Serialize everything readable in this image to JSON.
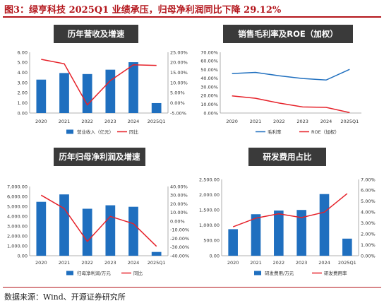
{
  "figure": {
    "title": "图3：绿亨科技 2025Q1 业绩承压，归母净利润同比下降 29.12%",
    "source": "数据来源：Wind、开源证券研究所"
  },
  "colors": {
    "accent": "#b4161c",
    "bar": "#1f6fbf",
    "line": "#e6222a",
    "banner": "#3a3a3a",
    "axis": "#999999"
  },
  "chart_data": [
    {
      "id": "revenue",
      "type": "bar+line",
      "title": "历年营收及增速",
      "categories": [
        "2020",
        "2021",
        "2022",
        "2023",
        "2024",
        "2025Q1"
      ],
      "series": [
        {
          "name": "营业收入（亿元）",
          "kind": "bar",
          "axis": "left",
          "values": [
            3.3,
            3.95,
            3.85,
            4.28,
            5.02,
            0.98
          ]
        },
        {
          "name": "同比",
          "kind": "line",
          "axis": "right",
          "values": [
            21.5,
            19.3,
            -1.0,
            11.0,
            18.8,
            18.5
          ]
        }
      ],
      "left_axis": {
        "min": 0,
        "max": 6,
        "step": 1,
        "decimals": 2,
        "suffix": ""
      },
      "right_axis": {
        "min": -5,
        "max": 25,
        "step": 5,
        "decimals": 2,
        "suffix": "%"
      },
      "legend_position": "bottom"
    },
    {
      "id": "margin",
      "type": "line",
      "title": "销售毛利率及ROE（加权）",
      "categories": [
        "2020",
        "2021",
        "2022",
        "2023",
        "2024",
        "2025Q1"
      ],
      "series": [
        {
          "name": "毛利率",
          "kind": "line",
          "axis": "left",
          "color_key": "bar",
          "values": [
            45.5,
            46.8,
            43.0,
            39.8,
            38.0,
            50.3
          ]
        },
        {
          "name": "ROE（加权）",
          "kind": "line",
          "axis": "left",
          "color_key": "line",
          "values": [
            19.8,
            17.0,
            11.5,
            7.0,
            6.5,
            0.5
          ]
        }
      ],
      "left_axis": {
        "min": 0,
        "max": 70,
        "step": 10,
        "decimals": 2,
        "suffix": "%"
      },
      "legend_position": "bottom"
    },
    {
      "id": "profit",
      "type": "bar+line",
      "title": "历年归母净利润及增速",
      "categories": [
        "2020",
        "2021",
        "2022",
        "2023",
        "2024",
        "2025Q1"
      ],
      "series": [
        {
          "name": "归母净利润/万元",
          "kind": "bar",
          "axis": "left",
          "values": [
            5450,
            6200,
            4750,
            5100,
            4950,
            380
          ]
        },
        {
          "name": "同比",
          "kind": "line",
          "axis": "right",
          "values": [
            30,
            14.5,
            -23.5,
            5.5,
            -3.0,
            -29.12
          ]
        }
      ],
      "left_axis": {
        "min": 0,
        "max": 7000,
        "step": 1000,
        "decimals": 2,
        "suffix": ""
      },
      "right_axis": {
        "min": -40,
        "max": 40,
        "step": 10,
        "decimals": 2,
        "suffix": "%"
      },
      "legend_position": "bottom"
    },
    {
      "id": "rd",
      "type": "bar+line",
      "title": "研发费用占比",
      "categories": [
        "2020",
        "2021",
        "2022",
        "2023",
        "2024",
        "2025Q1"
      ],
      "series": [
        {
          "name": "研发费用/万元",
          "kind": "bar",
          "axis": "left",
          "values": [
            870,
            1360,
            1480,
            1500,
            2020,
            560
          ]
        },
        {
          "name": "研发费用率",
          "kind": "line",
          "axis": "right",
          "values": [
            2.65,
            3.45,
            3.85,
            3.5,
            4.0,
            5.7
          ]
        }
      ],
      "left_axis": {
        "min": 0,
        "max": 2500,
        "step": 500,
        "decimals": 2,
        "suffix": ""
      },
      "right_axis": {
        "min": 0,
        "max": 7,
        "step": 1,
        "decimals": 2,
        "suffix": "%"
      },
      "legend_position": "bottom"
    }
  ]
}
